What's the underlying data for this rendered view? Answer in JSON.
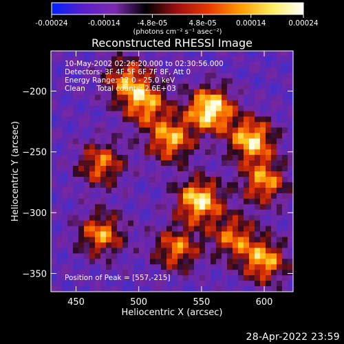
{
  "colorbar": {
    "ticks": [
      "-0.00024",
      "-0.00014",
      "-4.8e-05",
      "4.8e-05",
      "0.00014",
      "0.00024"
    ],
    "tick_values": [
      -0.00024,
      -0.00014,
      -4.8e-05,
      4.8e-05,
      0.00014,
      0.00024
    ],
    "range": [
      -0.00024,
      0.00024
    ],
    "units_label": "(photons cm⁻² s⁻¹ asec⁻²)",
    "colors": [
      "#0022ff",
      "#5a1fc8",
      "#7c2bb0",
      "#000000",
      "#a01010",
      "#e63b00",
      "#ff9b00",
      "#ffee60",
      "#ffffff"
    ]
  },
  "chart_data": {
    "type": "heatmap",
    "title": "Reconstructed RHESSI Image",
    "xlabel": "Heliocentric X (arcsec)",
    "ylabel": "Heliocentric Y (arcsec)",
    "xlim": [
      430,
      623
    ],
    "ylim": [
      -365,
      -167
    ],
    "xticks": [
      450,
      500,
      550,
      600
    ],
    "yticks": [
      -200,
      -250,
      -300,
      -350
    ],
    "annotations": [
      "10-May-2002 02:26:20.000 to 02:30:56.000",
      "Detectors: 3F 4F 5F 6F 7F 8F, Att 0",
      "Energy Range: 12.0 - 25.0 keV",
      "Clean     Total counts: 2.6E+03"
    ],
    "peak_label": "Position of Peak = [557,-215]",
    "peak": [
      557,
      -215
    ],
    "bright_regions": [
      {
        "x": 557,
        "y": -215,
        "level": 1.0
      },
      {
        "x": 548,
        "y": -290,
        "level": 0.9
      },
      {
        "x": 590,
        "y": -240,
        "level": 0.85
      },
      {
        "x": 525,
        "y": -240,
        "level": 0.75
      },
      {
        "x": 505,
        "y": -210,
        "level": 0.7
      },
      {
        "x": 470,
        "y": -260,
        "level": 0.65
      },
      {
        "x": 470,
        "y": -318,
        "level": 0.7
      },
      {
        "x": 600,
        "y": -275,
        "level": 0.7
      },
      {
        "x": 600,
        "y": -340,
        "level": 0.75
      },
      {
        "x": 530,
        "y": -330,
        "level": 0.65
      },
      {
        "x": 490,
        "y": -190,
        "level": 0.6
      },
      {
        "x": 575,
        "y": -320,
        "level": 0.6
      }
    ]
  },
  "timestamp": "28-Apr-2022 23:59"
}
